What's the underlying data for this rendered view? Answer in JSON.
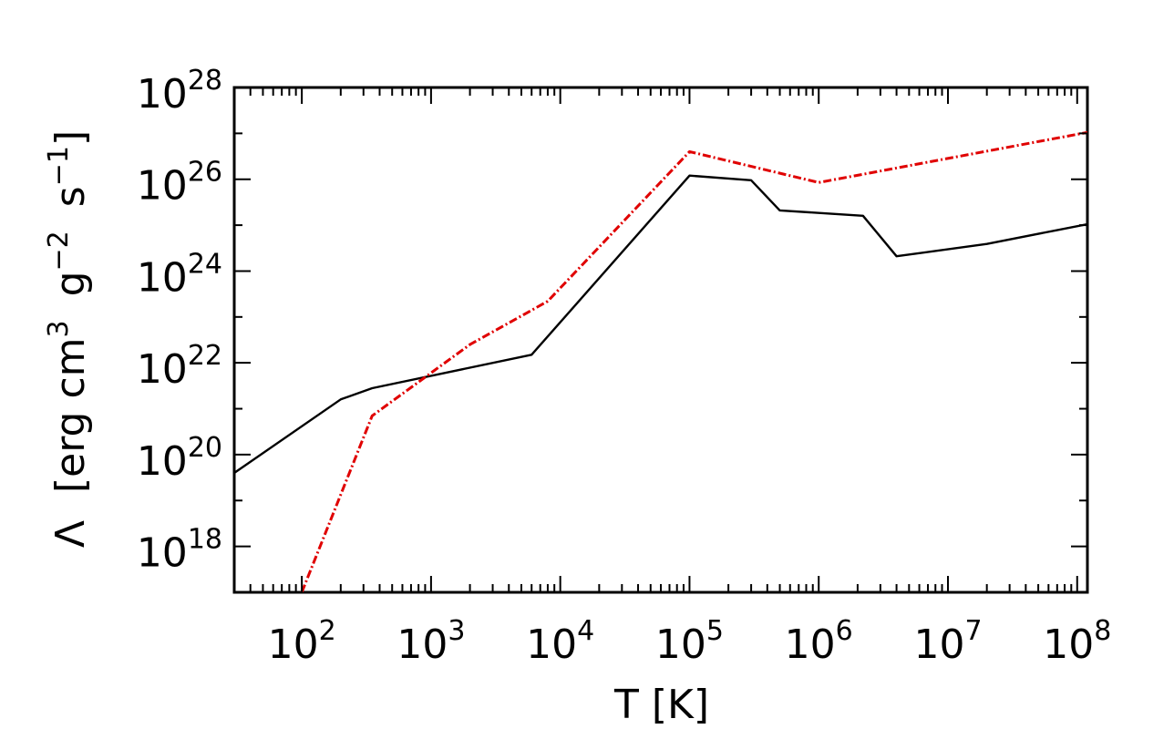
{
  "chart_data": {
    "type": "line",
    "title": "",
    "xlabel": "T [K]",
    "ylabel": {
      "symbol": "Λ",
      "open": "[erg cm",
      "cm_exp": "3",
      "g": "g",
      "g_exp": "−2",
      "s": "s",
      "s_exp": "−1",
      "close": "]"
    },
    "x_scale": "log",
    "y_scale": "log",
    "xlim": [
      30,
      120000000
    ],
    "ylim": [
      1e+17,
      1e+28
    ],
    "x_ticks": [
      {
        "base": "10",
        "exp": "2",
        "value": 100
      },
      {
        "base": "10",
        "exp": "3",
        "value": 1000
      },
      {
        "base": "10",
        "exp": "4",
        "value": 10000
      },
      {
        "base": "10",
        "exp": "5",
        "value": 100000
      },
      {
        "base": "10",
        "exp": "6",
        "value": 1000000
      },
      {
        "base": "10",
        "exp": "7",
        "value": 10000000
      },
      {
        "base": "10",
        "exp": "8",
        "value": 100000000
      }
    ],
    "y_ticks": [
      {
        "base": "10",
        "exp": "18",
        "value": 1e+18
      },
      {
        "base": "10",
        "exp": "20",
        "value": 1e+20
      },
      {
        "base": "10",
        "exp": "22",
        "value": 1e+22
      },
      {
        "base": "10",
        "exp": "24",
        "value": 1e+24
      },
      {
        "base": "10",
        "exp": "26",
        "value": 1e+26
      },
      {
        "base": "10",
        "exp": "28",
        "value": 1e+28
      }
    ],
    "grid": false,
    "legend": "none",
    "series": [
      {
        "color": "#000000",
        "style": "solid",
        "points": [
          [
            30,
            4e+19
          ],
          [
            200,
            1.6e+21
          ],
          [
            350,
            2.8e+21
          ],
          [
            6000,
            1.5e+22
          ],
          [
            100000,
            1.2e+26
          ],
          [
            300000,
            9.5e+25
          ],
          [
            500000,
            2.1e+25
          ],
          [
            2200000,
            1.6e+25
          ],
          [
            4000000,
            2.1e+24
          ],
          [
            20000000,
            3.9e+24
          ],
          [
            120000000,
            1.05e+25
          ]
        ]
      },
      {
        "color": "#e00000",
        "style": "dashdot",
        "points": [
          [
            100,
            1e+17
          ],
          [
            350,
            7e+20
          ],
          [
            2000,
            2.5e+22
          ],
          [
            8000,
            2.2e+23
          ],
          [
            100000,
            4e+26
          ],
          [
            1000000,
            8.5e+25
          ],
          [
            120000000,
            1.05e+27
          ]
        ]
      }
    ]
  }
}
